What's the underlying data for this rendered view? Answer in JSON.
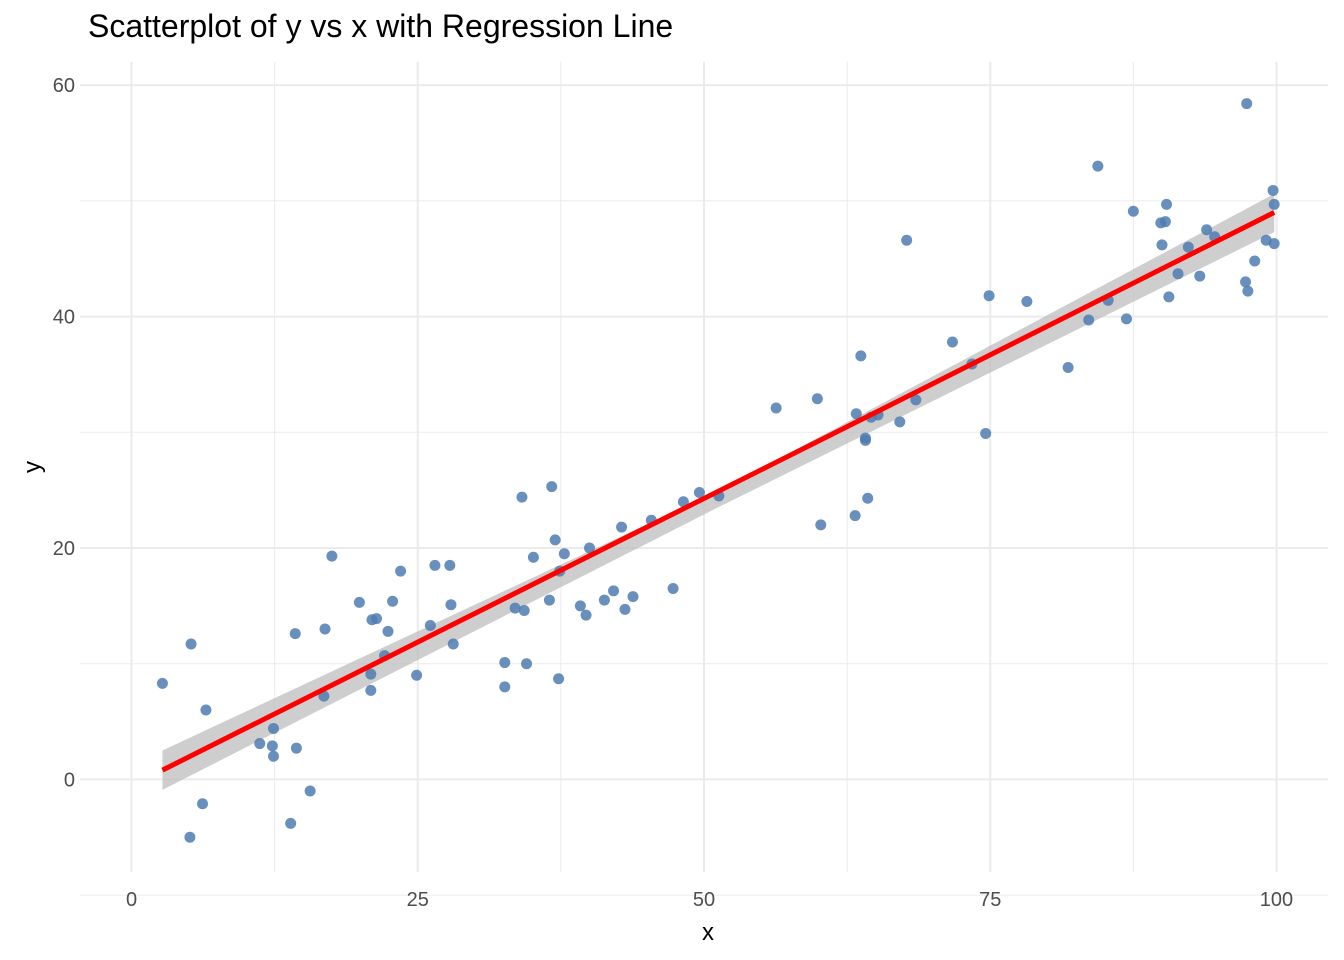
{
  "chart_data": {
    "type": "scatter",
    "title": "Scatterplot of y vs x with Regression Line",
    "xlabel": "x",
    "ylabel": "y",
    "xlim": [
      -4.5,
      104.5
    ],
    "ylim": [
      -8,
      62
    ],
    "x_ticks": [
      0,
      25,
      50,
      75,
      100
    ],
    "y_ticks": [
      0,
      20,
      40,
      60
    ],
    "grid": true,
    "colors": {
      "points": "#4f7bb0",
      "line": "#ff0000",
      "band": "#bdbdbd",
      "grid": "#ebebeb"
    },
    "points": [
      {
        "x": 2.7,
        "y": 8.3
      },
      {
        "x": 5.1,
        "y": -5.0
      },
      {
        "x": 5.2,
        "y": 11.7
      },
      {
        "x": 6.2,
        "y": -2.1
      },
      {
        "x": 6.5,
        "y": 6.0
      },
      {
        "x": 11.2,
        "y": 3.1
      },
      {
        "x": 12.3,
        "y": 2.9
      },
      {
        "x": 12.4,
        "y": 4.4
      },
      {
        "x": 12.4,
        "y": 2.0
      },
      {
        "x": 13.9,
        "y": -3.8
      },
      {
        "x": 14.3,
        "y": 12.6
      },
      {
        "x": 14.4,
        "y": 2.7
      },
      {
        "x": 15.6,
        "y": -1.0
      },
      {
        "x": 16.8,
        "y": 7.2
      },
      {
        "x": 16.9,
        "y": 13.0
      },
      {
        "x": 17.5,
        "y": 19.3
      },
      {
        "x": 19.9,
        "y": 15.3
      },
      {
        "x": 20.9,
        "y": 9.1
      },
      {
        "x": 20.9,
        "y": 7.7
      },
      {
        "x": 21.0,
        "y": 13.8
      },
      {
        "x": 21.4,
        "y": 13.9
      },
      {
        "x": 22.1,
        "y": 10.7
      },
      {
        "x": 22.4,
        "y": 12.8
      },
      {
        "x": 22.8,
        "y": 15.4
      },
      {
        "x": 23.5,
        "y": 18.0
      },
      {
        "x": 24.9,
        "y": 9.0
      },
      {
        "x": 26.1,
        "y": 13.3
      },
      {
        "x": 26.5,
        "y": 18.5
      },
      {
        "x": 27.8,
        "y": 18.5
      },
      {
        "x": 27.9,
        "y": 15.1
      },
      {
        "x": 28.1,
        "y": 11.7
      },
      {
        "x": 32.6,
        "y": 10.1
      },
      {
        "x": 32.6,
        "y": 8.0
      },
      {
        "x": 33.5,
        "y": 14.8
      },
      {
        "x": 34.1,
        "y": 24.4
      },
      {
        "x": 34.3,
        "y": 14.6
      },
      {
        "x": 34.5,
        "y": 10.0
      },
      {
        "x": 35.1,
        "y": 19.2
      },
      {
        "x": 36.5,
        "y": 15.5
      },
      {
        "x": 36.7,
        "y": 25.3
      },
      {
        "x": 37.0,
        "y": 20.7
      },
      {
        "x": 37.3,
        "y": 8.7
      },
      {
        "x": 37.4,
        "y": 18.0
      },
      {
        "x": 37.8,
        "y": 19.5
      },
      {
        "x": 39.2,
        "y": 15.0
      },
      {
        "x": 39.7,
        "y": 14.2
      },
      {
        "x": 40.0,
        "y": 20.0
      },
      {
        "x": 41.3,
        "y": 15.5
      },
      {
        "x": 42.1,
        "y": 16.3
      },
      {
        "x": 42.8,
        "y": 21.8
      },
      {
        "x": 43.1,
        "y": 14.7
      },
      {
        "x": 43.8,
        "y": 15.8
      },
      {
        "x": 45.4,
        "y": 22.4
      },
      {
        "x": 47.3,
        "y": 16.5
      },
      {
        "x": 48.2,
        "y": 24.0
      },
      {
        "x": 49.6,
        "y": 24.8
      },
      {
        "x": 51.3,
        "y": 24.5
      },
      {
        "x": 56.3,
        "y": 32.1
      },
      {
        "x": 59.9,
        "y": 32.9
      },
      {
        "x": 60.2,
        "y": 22.0
      },
      {
        "x": 63.2,
        "y": 22.8
      },
      {
        "x": 63.3,
        "y": 31.6
      },
      {
        "x": 63.7,
        "y": 36.6
      },
      {
        "x": 64.1,
        "y": 29.5
      },
      {
        "x": 64.1,
        "y": 29.3
      },
      {
        "x": 64.3,
        "y": 24.3
      },
      {
        "x": 64.6,
        "y": 31.3
      },
      {
        "x": 65.2,
        "y": 31.5
      },
      {
        "x": 67.1,
        "y": 30.9
      },
      {
        "x": 67.7,
        "y": 46.6
      },
      {
        "x": 68.5,
        "y": 32.8
      },
      {
        "x": 71.7,
        "y": 37.8
      },
      {
        "x": 73.4,
        "y": 35.9
      },
      {
        "x": 74.6,
        "y": 29.9
      },
      {
        "x": 74.9,
        "y": 41.8
      },
      {
        "x": 78.2,
        "y": 41.3
      },
      {
        "x": 81.8,
        "y": 35.6
      },
      {
        "x": 83.6,
        "y": 39.7
      },
      {
        "x": 84.4,
        "y": 53.0
      },
      {
        "x": 85.3,
        "y": 41.4
      },
      {
        "x": 86.9,
        "y": 39.8
      },
      {
        "x": 87.5,
        "y": 49.1
      },
      {
        "x": 89.9,
        "y": 48.1
      },
      {
        "x": 90.0,
        "y": 46.2
      },
      {
        "x": 90.3,
        "y": 48.2
      },
      {
        "x": 90.4,
        "y": 49.7
      },
      {
        "x": 90.6,
        "y": 41.7
      },
      {
        "x": 91.4,
        "y": 43.7
      },
      {
        "x": 92.3,
        "y": 46.0
      },
      {
        "x": 93.3,
        "y": 43.5
      },
      {
        "x": 93.9,
        "y": 47.5
      },
      {
        "x": 94.6,
        "y": 46.9
      },
      {
        "x": 97.4,
        "y": 58.4
      },
      {
        "x": 97.5,
        "y": 42.2
      },
      {
        "x": 97.3,
        "y": 43.0
      },
      {
        "x": 98.1,
        "y": 44.8
      },
      {
        "x": 99.1,
        "y": 46.6
      },
      {
        "x": 99.7,
        "y": 50.9
      },
      {
        "x": 99.8,
        "y": 49.7
      },
      {
        "x": 99.8,
        "y": 46.3
      }
    ],
    "regression_line": {
      "x": [
        2.7,
        99.8
      ],
      "y": [
        0.8,
        49.0
      ]
    },
    "confidence_band": {
      "x": [
        2.7,
        51,
        99.8
      ],
      "lower": [
        -0.9,
        23.4,
        47.3
      ],
      "upper": [
        2.5,
        24.8,
        50.6
      ]
    }
  }
}
